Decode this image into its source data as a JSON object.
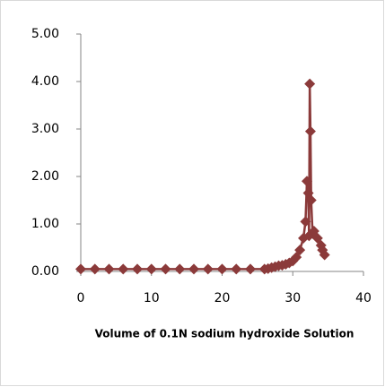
{
  "chart_data": {
    "type": "line",
    "x_label": "Volume of 0.1N sodium hydroxide Solution",
    "x": [
      0,
      2,
      4,
      6,
      8,
      10,
      12,
      14,
      16,
      18,
      20,
      22,
      24,
      26,
      26.5,
      27,
      27.5,
      28,
      28.5,
      29,
      29.5,
      30,
      30.5,
      31,
      31.5,
      31.8,
      32,
      32.2,
      32.3,
      32.4,
      32.5,
      32.6,
      32.8,
      33,
      33.5,
      34,
      34.2,
      34.5
    ],
    "series": [
      {
        "color": "#8b3a3a",
        "values": [
          0.05,
          0.05,
          0.05,
          0.05,
          0.05,
          0.05,
          0.05,
          0.05,
          0.05,
          0.05,
          0.05,
          0.05,
          0.05,
          0.05,
          0.06,
          0.08,
          0.1,
          0.12,
          0.13,
          0.15,
          0.18,
          0.22,
          0.3,
          0.45,
          0.7,
          1.05,
          1.9,
          1.65,
          0.75,
          3.95,
          2.95,
          1.5,
          0.8,
          0.85,
          0.7,
          0.55,
          0.45,
          0.35
        ]
      }
    ],
    "xlim": [
      0,
      40
    ],
    "xticks": [
      0,
      10,
      20,
      30,
      40
    ],
    "ylim": [
      0,
      5
    ],
    "yticks": [
      {
        "value": 0,
        "label": "0.00"
      },
      {
        "value": 1,
        "label": "1.00"
      },
      {
        "value": 2,
        "label": "2.00"
      },
      {
        "value": 3,
        "label": "3.00"
      },
      {
        "value": 4,
        "label": "4.00"
      },
      {
        "value": 5,
        "label": "5.00"
      }
    ],
    "grid": false
  }
}
